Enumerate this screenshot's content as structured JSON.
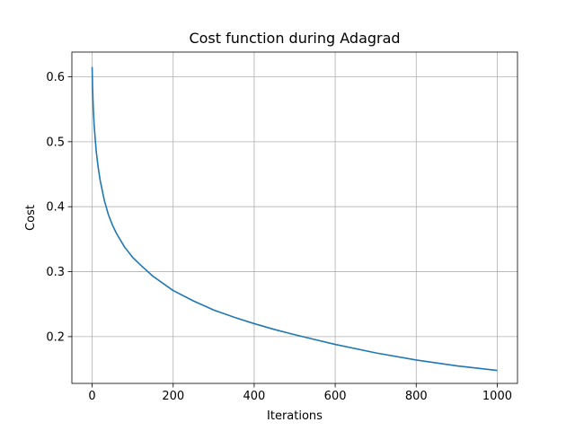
{
  "chart_data": {
    "type": "line",
    "title": "Cost function during Adagrad",
    "xlabel": "Iterations",
    "ylabel": "Cost",
    "xlim": [
      -50,
      1050
    ],
    "ylim": [
      0.128,
      0.638
    ],
    "xticks": [
      0,
      200,
      400,
      600,
      800,
      1000
    ],
    "yticks": [
      0.2,
      0.3,
      0.4,
      0.5,
      0.6
    ],
    "xtick_labels": [
      "0",
      "200",
      "400",
      "600",
      "800",
      "1000"
    ],
    "ytick_labels": [
      "0.2",
      "0.3",
      "0.4",
      "0.5",
      "0.6"
    ],
    "grid": true,
    "series": [
      {
        "color": "#1f77b4",
        "x": [
          0,
          1,
          2,
          3,
          5,
          10,
          15,
          20,
          30,
          40,
          50,
          60,
          80,
          100,
          120,
          150,
          200,
          250,
          300,
          350,
          400,
          450,
          500,
          600,
          700,
          800,
          900,
          1000
        ],
        "y": [
          0.615,
          0.585,
          0.565,
          0.55,
          0.525,
          0.486,
          0.46,
          0.44,
          0.41,
          0.388,
          0.372,
          0.359,
          0.338,
          0.322,
          0.31,
          0.293,
          0.271,
          0.255,
          0.241,
          0.23,
          0.22,
          0.211,
          0.203,
          0.188,
          0.175,
          0.164,
          0.155,
          0.148
        ]
      }
    ]
  }
}
